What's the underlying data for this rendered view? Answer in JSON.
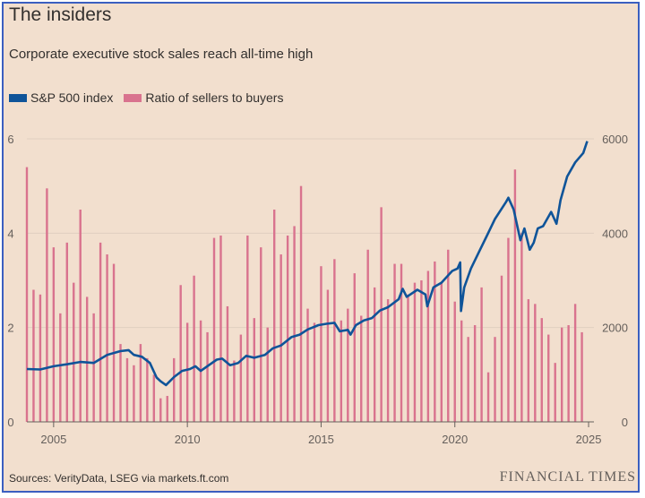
{
  "title": "The insiders",
  "subtitle": "Corporate executive stock sales reach all-time high",
  "source": "Sources: VerityData, LSEG via markets.ft.com",
  "logo": "FINANCIAL TIMES",
  "colors": {
    "background": "#f2dfce",
    "sp500": "#0f5499",
    "ratio": "#d9738e",
    "grid": "#e0cfc0",
    "text": "#33302e"
  },
  "chart_data": {
    "type": "bar",
    "x_range": [
      2004.0,
      2025.2
    ],
    "x_ticks": [
      "2005",
      "2010",
      "2015",
      "2020",
      "2025"
    ],
    "y_left_ticks": [
      "0",
      "2",
      "4",
      "6"
    ],
    "y_right_ticks": [
      "0",
      "2000",
      "4000",
      "6000"
    ],
    "ylim_left": [
      0,
      6
    ],
    "ylim_right": [
      0,
      6000
    ],
    "grid": true,
    "legend_placement": "top-left",
    "series": [
      {
        "name": "Ratio of sellers to buyers",
        "type": "bar",
        "axis": "left",
        "x": [
          2004.0,
          2004.25,
          2004.5,
          2004.75,
          2005.0,
          2005.25,
          2005.5,
          2005.75,
          2006.0,
          2006.25,
          2006.5,
          2006.75,
          2007.0,
          2007.25,
          2007.5,
          2007.75,
          2008.0,
          2008.25,
          2008.5,
          2008.75,
          2009.0,
          2009.25,
          2009.5,
          2009.75,
          2010.0,
          2010.25,
          2010.5,
          2010.75,
          2011.0,
          2011.25,
          2011.5,
          2011.75,
          2012.0,
          2012.25,
          2012.5,
          2012.75,
          2013.0,
          2013.25,
          2013.5,
          2013.75,
          2014.0,
          2014.25,
          2014.5,
          2014.75,
          2015.0,
          2015.25,
          2015.5,
          2015.75,
          2016.0,
          2016.25,
          2016.5,
          2016.75,
          2017.0,
          2017.25,
          2017.5,
          2017.75,
          2018.0,
          2018.25,
          2018.5,
          2018.75,
          2019.0,
          2019.25,
          2019.5,
          2019.75,
          2020.0,
          2020.25,
          2020.5,
          2020.75,
          2021.0,
          2021.25,
          2021.5,
          2021.75,
          2022.0,
          2022.25,
          2022.5,
          2022.75,
          2023.0,
          2023.25,
          2023.5,
          2023.75,
          2024.0,
          2024.25,
          2024.5,
          2024.75
        ],
        "values": [
          5.4,
          2.8,
          2.7,
          4.95,
          3.7,
          2.3,
          3.8,
          2.95,
          4.5,
          2.65,
          2.3,
          3.8,
          3.55,
          3.35,
          1.65,
          1.35,
          1.2,
          1.65,
          1.35,
          1.0,
          0.5,
          0.55,
          1.35,
          2.9,
          2.1,
          3.1,
          2.15,
          1.9,
          3.9,
          3.95,
          2.45,
          1.3,
          1.85,
          3.95,
          2.2,
          3.7,
          2.0,
          4.5,
          3.55,
          3.95,
          4.15,
          5.0,
          2.4,
          2.1,
          3.3,
          2.8,
          3.45,
          2.15,
          2.4,
          3.15,
          2.25,
          3.65,
          2.85,
          4.55,
          2.6,
          3.35,
          3.35,
          2.7,
          2.95,
          3.0,
          3.2,
          3.4,
          2.95,
          3.65,
          2.55,
          2.15,
          1.8,
          2.05,
          2.85,
          1.05,
          1.8,
          3.1,
          3.9,
          5.35,
          4.0,
          2.6,
          2.5,
          2.2,
          1.85,
          1.25,
          2.0,
          2.05,
          2.5,
          1.9
        ]
      },
      {
        "name": "S&P 500 index",
        "type": "line",
        "axis": "right",
        "x": [
          2004.0,
          2004.5,
          2005.0,
          2005.5,
          2006.0,
          2006.5,
          2007.0,
          2007.5,
          2007.8,
          2008.0,
          2008.3,
          2008.6,
          2008.85,
          2009.0,
          2009.2,
          2009.5,
          2009.8,
          2010.1,
          2010.3,
          2010.5,
          2010.8,
          2011.1,
          2011.3,
          2011.6,
          2011.9,
          2012.2,
          2012.5,
          2012.9,
          2013.2,
          2013.5,
          2013.9,
          2014.2,
          2014.5,
          2014.9,
          2015.2,
          2015.5,
          2015.7,
          2016.0,
          2016.1,
          2016.3,
          2016.6,
          2016.9,
          2017.2,
          2017.5,
          2017.9,
          2018.05,
          2018.2,
          2018.6,
          2018.9,
          2018.97,
          2019.2,
          2019.5,
          2019.9,
          2020.1,
          2020.2,
          2020.23,
          2020.35,
          2020.6,
          2020.9,
          2021.2,
          2021.5,
          2021.9,
          2022.0,
          2022.2,
          2022.45,
          2022.6,
          2022.8,
          2022.95,
          2023.1,
          2023.3,
          2023.6,
          2023.8,
          2023.95,
          2024.2,
          2024.5,
          2024.8,
          2024.95
        ],
        "values": [
          1120,
          1110,
          1180,
          1220,
          1270,
          1250,
          1420,
          1500,
          1520,
          1420,
          1380,
          1250,
          940,
          860,
          780,
          950,
          1080,
          1120,
          1180,
          1080,
          1200,
          1320,
          1340,
          1200,
          1250,
          1400,
          1360,
          1420,
          1560,
          1620,
          1800,
          1850,
          1960,
          2050,
          2080,
          2100,
          1920,
          1950,
          1850,
          2050,
          2150,
          2200,
          2360,
          2430,
          2600,
          2820,
          2650,
          2800,
          2700,
          2450,
          2850,
          2950,
          3200,
          3250,
          3380,
          2350,
          2850,
          3250,
          3600,
          3950,
          4300,
          4650,
          4750,
          4500,
          3850,
          4100,
          3650,
          3800,
          4100,
          4150,
          4450,
          4200,
          4700,
          5200,
          5500,
          5700,
          5950
        ]
      }
    ]
  }
}
